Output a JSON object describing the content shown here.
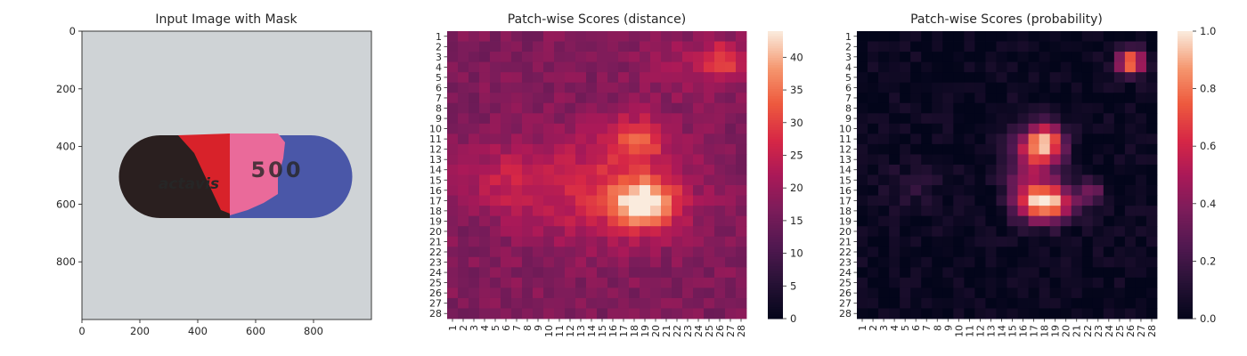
{
  "chart_data": [
    {
      "type": "image",
      "title": "Input Image with Mask",
      "xlim": [
        0,
        1000
      ],
      "ylim": [
        1000,
        0
      ],
      "xticks": [
        0,
        200,
        400,
        600,
        800
      ],
      "yticks": [
        0,
        200,
        400,
        600,
        800
      ],
      "image": {
        "capsule_text": "500",
        "logo_text": "actavis",
        "colors": {
          "background": "#cfd3d6",
          "capsule_dark": "#2a1f1f",
          "capsule_blue": "#4a57a8",
          "mask_red": "#d8222a",
          "mask_pink": "#ea6a9a",
          "print": "#d0d0d0"
        }
      }
    },
    {
      "type": "heatmap",
      "title": "Patch-wise Scores (distance)",
      "rows": 28,
      "cols": 28,
      "xticklabels": [
        "1",
        "2",
        "3",
        "4",
        "5",
        "6",
        "7",
        "8",
        "9",
        "10",
        "11",
        "12",
        "13",
        "14",
        "15",
        "16",
        "17",
        "18",
        "19",
        "20",
        "21",
        "22",
        "23",
        "24",
        "25",
        "26",
        "27",
        "28"
      ],
      "yticklabels": [
        "1",
        "2",
        "3",
        "4",
        "5",
        "6",
        "7",
        "8",
        "9",
        "10",
        "11",
        "12",
        "13",
        "14",
        "15",
        "16",
        "17",
        "18",
        "19",
        "20",
        "21",
        "22",
        "23",
        "24",
        "25",
        "26",
        "27",
        "28"
      ],
      "colorbar": {
        "vmin": 0,
        "vmax": 44,
        "ticks": [
          0,
          5,
          10,
          15,
          20,
          25,
          30,
          35,
          40
        ]
      },
      "colormap": "rocket",
      "model": {
        "base": 17,
        "blobs": [
          {
            "row": 17.3,
            "col": 19.0,
            "sigma_row": 1.6,
            "sigma_col": 2.0,
            "amp": 26
          },
          {
            "row": 11.0,
            "col": 18.3,
            "sigma_row": 1.4,
            "sigma_col": 1.8,
            "amp": 14
          },
          {
            "row": 15.8,
            "col": 15.0,
            "sigma_row": 3.8,
            "sigma_col": 5.5,
            "amp": 10
          },
          {
            "row": 15.0,
            "col": 5.5,
            "sigma_row": 2.2,
            "sigma_col": 3.0,
            "amp": 6
          },
          {
            "row": 3.5,
            "col": 26.2,
            "sigma_row": 1.2,
            "sigma_col": 1.2,
            "amp": 14
          },
          {
            "row": 4.0,
            "col": 23.0,
            "sigma_row": 2.0,
            "sigma_col": 3.0,
            "amp": 4
          }
        ],
        "noise": 2.5,
        "seed": 7
      }
    },
    {
      "type": "heatmap",
      "title": "Patch-wise Scores (probability)",
      "rows": 28,
      "cols": 28,
      "xticklabels": [
        "1",
        "2",
        "3",
        "4",
        "5",
        "6",
        "7",
        "8",
        "9",
        "10",
        "11",
        "12",
        "13",
        "14",
        "15",
        "16",
        "17",
        "18",
        "19",
        "20",
        "21",
        "22",
        "23",
        "24",
        "25",
        "26",
        "27",
        "28"
      ],
      "yticklabels": [
        "1",
        "2",
        "3",
        "4",
        "5",
        "6",
        "7",
        "8",
        "9",
        "10",
        "11",
        "12",
        "13",
        "14",
        "15",
        "16",
        "17",
        "18",
        "19",
        "20",
        "21",
        "22",
        "23",
        "24",
        "25",
        "26",
        "27",
        "28"
      ],
      "colorbar": {
        "vmin": 0.0,
        "vmax": 1.0,
        "ticks": [
          0.0,
          0.2,
          0.4,
          0.6,
          0.8,
          1.0
        ],
        "ticklabels": [
          "0.0",
          "0.2",
          "0.4",
          "0.6",
          "0.8",
          "1.0"
        ]
      },
      "colormap": "rocket",
      "model": {
        "base": 0.02,
        "blobs": [
          {
            "row": 17.2,
            "col": 18.2,
            "sigma_row": 1.3,
            "sigma_col": 1.8,
            "amp": 0.95
          },
          {
            "row": 11.5,
            "col": 18.0,
            "sigma_row": 1.3,
            "sigma_col": 1.3,
            "amp": 0.85
          },
          {
            "row": 14.0,
            "col": 16.5,
            "sigma_row": 2.5,
            "sigma_col": 1.5,
            "amp": 0.35
          },
          {
            "row": 3.5,
            "col": 26.0,
            "sigma_row": 0.9,
            "sigma_col": 0.9,
            "amp": 0.85
          },
          {
            "row": 15.5,
            "col": 5.5,
            "sigma_row": 1.5,
            "sigma_col": 2.0,
            "amp": 0.1
          },
          {
            "row": 16.0,
            "col": 22.5,
            "sigma_row": 0.8,
            "sigma_col": 0.8,
            "amp": 0.35
          }
        ],
        "noise": 0.06,
        "seed": 11
      }
    }
  ]
}
